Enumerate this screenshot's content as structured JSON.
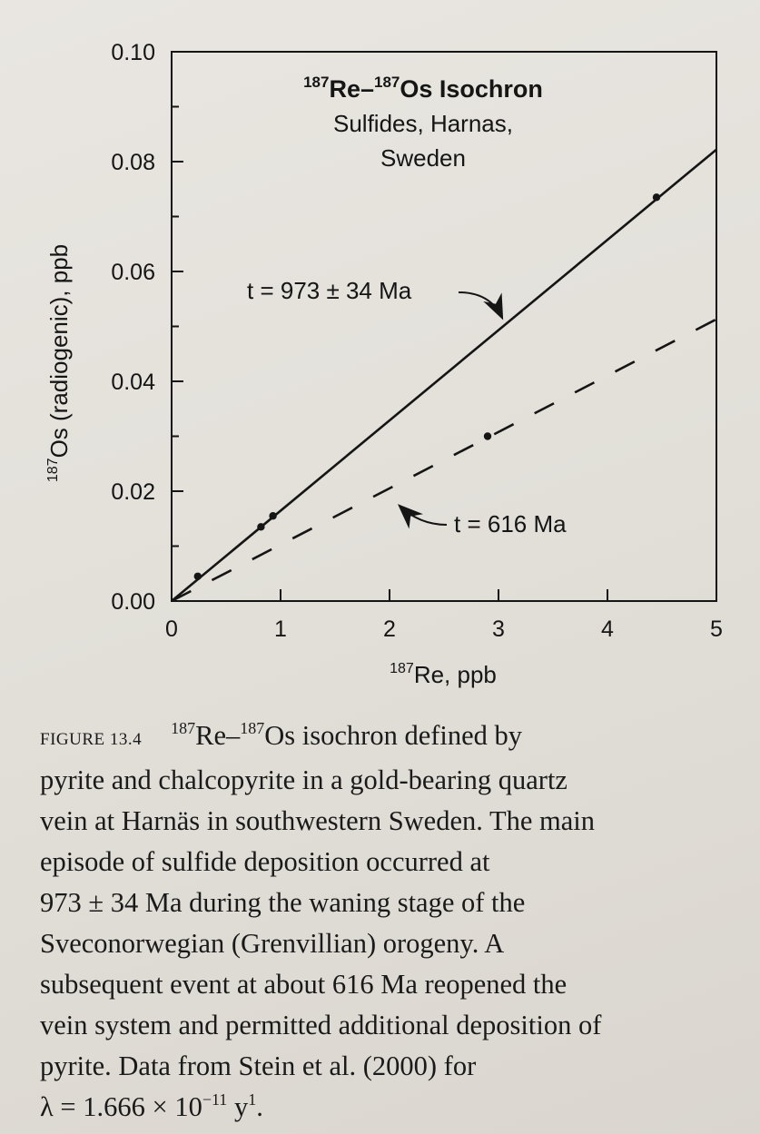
{
  "chart_data": {
    "type": "scatter",
    "title": {
      "sup1": "187",
      "part1": "Re–",
      "sup2": "187",
      "part2": "Os Isochron",
      "line2": "Sulfides, Harnas,",
      "line3": "Sweden"
    },
    "xlabel": {
      "sup": "187",
      "text": "Re, ppb"
    },
    "ylabel": {
      "sup": "187",
      "text": "Os (radiogenic), ppb"
    },
    "xlim": [
      0,
      5
    ],
    "ylim": [
      0,
      0.1
    ],
    "x_ticks": [
      "0",
      "1",
      "2",
      "3",
      "4",
      "5"
    ],
    "y_ticks": [
      "0.00",
      "0.02",
      "0.04",
      "0.06",
      "0.08",
      "0.10"
    ],
    "points": [
      {
        "x": 0.24,
        "y": 0.0045
      },
      {
        "x": 0.82,
        "y": 0.0135
      },
      {
        "x": 0.93,
        "y": 0.0155
      },
      {
        "x": 2.9,
        "y": 0.03
      },
      {
        "x": 4.45,
        "y": 0.0735
      }
    ],
    "series": [
      {
        "name": "t = 973 ± 34 Ma",
        "style": "solid",
        "x": [
          0,
          5
        ],
        "y": [
          0,
          0.0822
        ]
      },
      {
        "name": "t = 616 Ma",
        "style": "dashed",
        "x": [
          0,
          5
        ],
        "y": [
          0,
          0.0513
        ]
      }
    ],
    "annotations": [
      {
        "text": "t = 973 ± 34 Ma",
        "points_to_series": 0
      },
      {
        "text": "t = 616 Ma",
        "points_to_series": 1
      }
    ],
    "grid": false
  },
  "caption": {
    "figure_label": "FIGURE 13.4",
    "lines": [
      "pyrite and chalcopyrite in a gold-bearing quartz",
      "vein at Harnäs in southwestern Sweden. The main",
      "episode of sulfide deposition occurred at",
      "973 ± 34 Ma during the waning stage of the",
      "Sveconorwegian (Grenvillian) orogeny. A",
      "subsequent event at about 616 Ma reopened the",
      "vein system and permitted additional deposition of",
      "pyrite. Data from Stein et al. (2000) for"
    ],
    "first_line": {
      "sup1": "187",
      "t1": "Re–",
      "sup2": "187",
      "t2": "Os isochron defined by"
    },
    "last_line": {
      "t1": "λ = 1.666 × 10",
      "sup1": "−11",
      "t2": " y",
      "sup2": "1",
      "t3": "."
    }
  }
}
